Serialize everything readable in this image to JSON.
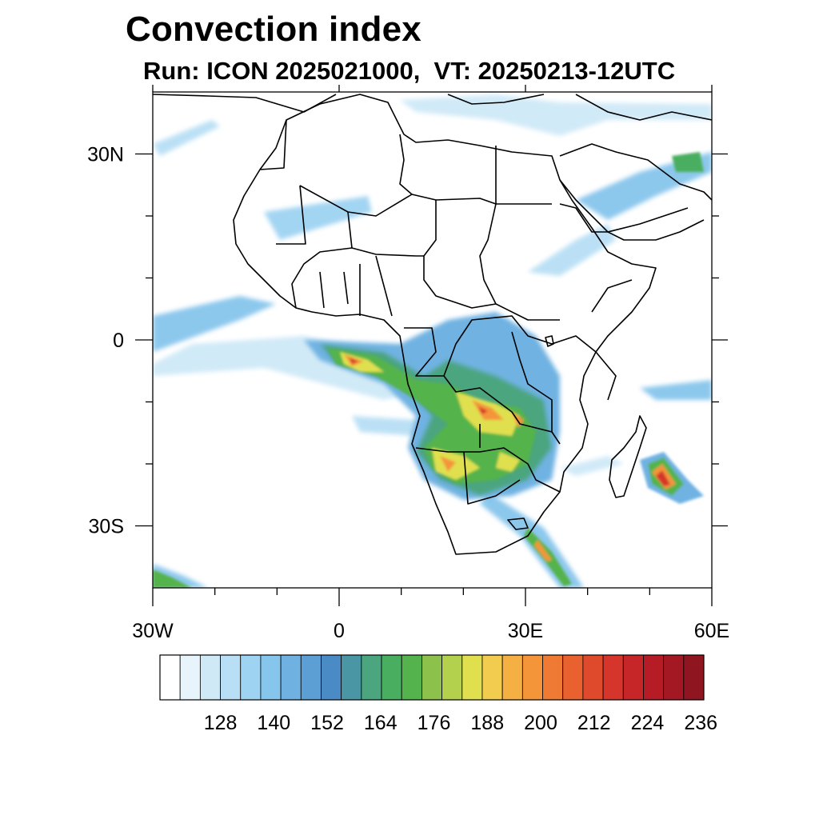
{
  "title": "Convection index",
  "subtitle": "Run: ICON 2025021000,  VT: 20250213-12UTC",
  "map": {
    "region": "Africa",
    "lon_range": [
      -30,
      60
    ],
    "lat_range": [
      -40,
      40
    ],
    "x_ticks": [
      {
        "lon": -30,
        "label": "30W"
      },
      {
        "lon": 0,
        "label": "0"
      },
      {
        "lon": 30,
        "label": "30E"
      },
      {
        "lon": 60,
        "label": "60E"
      }
    ],
    "y_ticks": [
      {
        "lat": 30,
        "label": "30N"
      },
      {
        "lat": 0,
        "label": "0"
      },
      {
        "lat": -30,
        "label": "30S"
      }
    ],
    "minor_lon": [
      -20,
      -10,
      10,
      20,
      40,
      50
    ],
    "minor_lat": [
      20,
      10,
      -10,
      -20
    ]
  },
  "colorbar": {
    "labels": [
      "128",
      "140",
      "152",
      "164",
      "176",
      "188",
      "200",
      "212",
      "224",
      "236"
    ],
    "colors": [
      "#ffffff",
      "#e8f4fb",
      "#cfe9f7",
      "#b8dff5",
      "#9ed3f2",
      "#86c5ec",
      "#6fb2e2",
      "#5b9fd4",
      "#4a8ac5",
      "#4a96a4",
      "#4ba57f",
      "#49ae5f",
      "#54b34c",
      "#8cc24b",
      "#b3d14c",
      "#e0e04f",
      "#f2cc4e",
      "#f5b044",
      "#f4953a",
      "#ef7a33",
      "#e9612e",
      "#e04a2c",
      "#d6352b",
      "#c72629",
      "#b51c26",
      "#a31823",
      "#8f1520"
    ]
  },
  "field_colors": {
    "light": "#cfe9f7",
    "mid": "#86c5ec",
    "blue": "#5b9fd4",
    "teal": "#4ba57f",
    "green": "#54b34c",
    "yellow": "#e0e04f",
    "orange": "#f4953a",
    "red": "#d6352b"
  }
}
